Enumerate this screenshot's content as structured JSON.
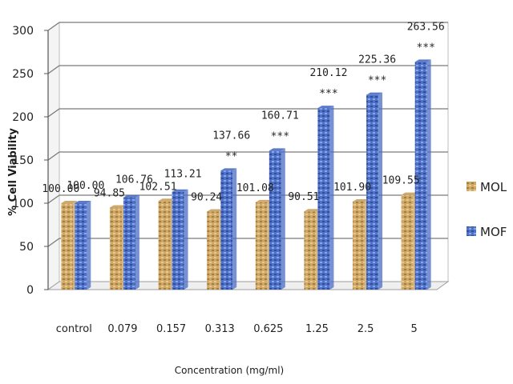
{
  "chart_data": {
    "type": "bar",
    "title": "",
    "xlabel": "Concentration (mg/ml)",
    "ylabel": "% Cell Viability",
    "ylim": [
      0,
      300
    ],
    "yticks": [
      0,
      50,
      100,
      150,
      200,
      250,
      300
    ],
    "grid": true,
    "legend_position": "right",
    "categories": [
      "control",
      "0.079",
      "0.157",
      "0.313",
      "0.625",
      "1.25",
      "2.5",
      "5"
    ],
    "series": [
      {
        "name": "MOL",
        "color": "#c8a060",
        "values": [
          100.0,
          94.85,
          102.51,
          90.24,
          101.08,
          90.51,
          101.9,
          109.55
        ],
        "labels": [
          "100.00",
          "94.85",
          "102.51",
          "90.24",
          "101.08",
          "90.51",
          "101.90",
          "109.55"
        ],
        "significance": [
          "",
          "",
          "",
          "",
          "",
          "",
          "",
          ""
        ]
      },
      {
        "name": "MOF",
        "color": "#4a6cc4",
        "values": [
          100.0,
          106.76,
          113.21,
          137.66,
          160.71,
          210.12,
          225.36,
          263.56
        ],
        "labels": [
          "100.00",
          "106.76",
          "113.21",
          "137.66",
          "160.71",
          "210.12",
          "225.36",
          "263.56"
        ],
        "significance": [
          "",
          "",
          "",
          "**",
          "***",
          "***",
          "***",
          "***"
        ]
      }
    ]
  }
}
